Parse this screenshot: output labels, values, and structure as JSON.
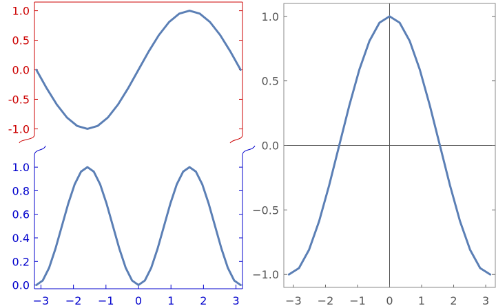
{
  "chart_data": [
    {
      "type": "line",
      "title": "",
      "xlabel": "",
      "ylabel": "",
      "xlim": [
        -3.2,
        3.2
      ],
      "ylim": [
        -1.1,
        1.1
      ],
      "xticks": [
        -3,
        -2,
        -1,
        0,
        1,
        2,
        3
      ],
      "yticks": [
        -1.0,
        -0.5,
        0.0,
        0.5,
        1.0
      ],
      "ytick_labels": [
        "-1.0",
        "-0.5",
        "0.0",
        "0.5",
        "1.0"
      ],
      "axis_color": "#cc0000",
      "series": [
        {
          "x": [
            -3.1416,
            -2.8274,
            -2.5133,
            -2.1991,
            -1.885,
            -1.5708,
            -1.2566,
            -0.9425,
            -0.6283,
            -0.3142,
            0,
            0.3142,
            0.6283,
            0.9425,
            1.2566,
            1.5708,
            1.885,
            2.1991,
            2.5133,
            2.8274,
            3.1416
          ],
          "y": [
            0,
            -0.309,
            -0.588,
            -0.809,
            -0.951,
            -1.0,
            -0.951,
            -0.809,
            -0.588,
            -0.309,
            0,
            0.309,
            0.588,
            0.809,
            0.951,
            1.0,
            0.951,
            0.809,
            0.588,
            0.309,
            0
          ],
          "color": "#5b7fb5"
        }
      ]
    },
    {
      "type": "line",
      "title": "",
      "xlabel": "",
      "ylabel": "",
      "xlim": [
        -3.2,
        3.2
      ],
      "ylim": [
        -0.02,
        1.1
      ],
      "xticks": [
        -3,
        -2,
        -1,
        0,
        1,
        2,
        3
      ],
      "xtick_labels": [
        "−3",
        "−2",
        "−1",
        "0",
        "1",
        "2",
        "3"
      ],
      "yticks": [
        0.0,
        0.2,
        0.4,
        0.6,
        0.8,
        1.0
      ],
      "ytick_labels": [
        "0.0",
        "0.2",
        "0.4",
        "0.6",
        "0.8",
        "1.0"
      ],
      "axis_color": "#0000cc",
      "series": [
        {
          "x": [
            -3.1416,
            -2.9452,
            -2.7489,
            -2.5525,
            -2.3562,
            -2.1598,
            -1.9635,
            -1.7671,
            -1.5708,
            -1.3744,
            -1.1781,
            -0.9817,
            -0.7854,
            -0.589,
            -0.3927,
            -0.1963,
            0,
            0.1963,
            0.3927,
            0.589,
            0.7854,
            0.9817,
            1.1781,
            1.3744,
            1.5708,
            1.7671,
            1.9635,
            2.1598,
            2.3562,
            2.5525,
            2.7489,
            2.9452,
            3.1416
          ],
          "y": [
            0,
            0.038,
            0.146,
            0.309,
            0.5,
            0.691,
            0.854,
            0.962,
            1.0,
            0.962,
            0.854,
            0.691,
            0.5,
            0.309,
            0.146,
            0.038,
            0,
            0.038,
            0.146,
            0.309,
            0.5,
            0.691,
            0.854,
            0.962,
            1.0,
            0.962,
            0.854,
            0.691,
            0.5,
            0.309,
            0.146,
            0.038,
            0
          ],
          "color": "#5b7fb5"
        }
      ]
    },
    {
      "type": "line",
      "title": "",
      "xlabel": "",
      "ylabel": "",
      "xlim": [
        -3.3,
        3.3
      ],
      "ylim": [
        -1.1,
        1.1
      ],
      "xticks": [
        -3,
        -2,
        -1,
        0,
        1,
        2,
        3
      ],
      "xtick_labels": [
        "−3",
        "−2",
        "−1",
        "0",
        "1",
        "2",
        "3"
      ],
      "yticks": [
        -1.0,
        -0.5,
        0.0,
        0.5,
        1.0
      ],
      "ytick_labels": [
        "−1.0",
        "−0.5",
        "0.0",
        "0.5",
        "1.0"
      ],
      "axis_color": "#555555",
      "series": [
        {
          "x": [
            -3.1416,
            -2.8274,
            -2.5133,
            -2.1991,
            -1.885,
            -1.5708,
            -1.2566,
            -0.9425,
            -0.6283,
            -0.3142,
            0,
            0.3142,
            0.6283,
            0.9425,
            1.2566,
            1.5708,
            1.885,
            2.1991,
            2.5133,
            2.8274,
            3.1416
          ],
          "y": [
            -1.0,
            -0.951,
            -0.809,
            -0.588,
            -0.309,
            0,
            0.309,
            0.588,
            0.809,
            0.951,
            1.0,
            0.951,
            0.809,
            0.588,
            0.309,
            0,
            -0.309,
            -0.588,
            -0.809,
            -0.951,
            -1.0
          ],
          "color": "#5b7fb5"
        }
      ]
    }
  ]
}
